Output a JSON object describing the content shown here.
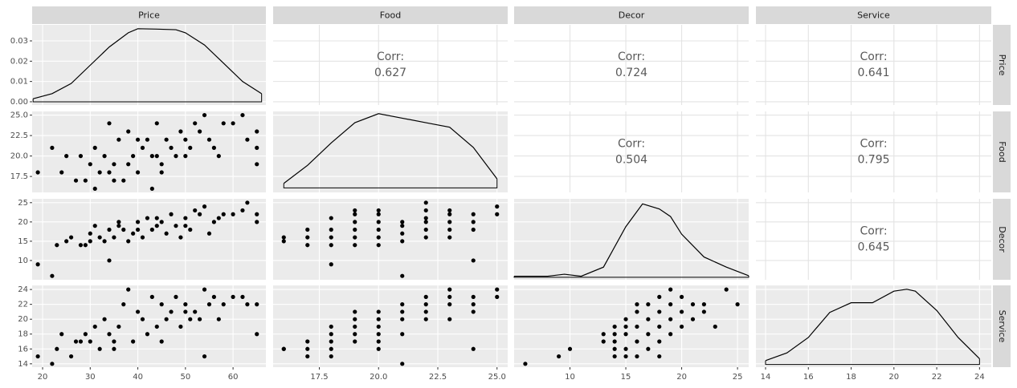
{
  "chart_data": {
    "type": "pairs",
    "variables": [
      "Price",
      "Food",
      "Decor",
      "Service"
    ],
    "axes": [
      {
        "lim": [
          17.8,
          66.9
        ],
        "ticks": [
          20,
          30,
          40,
          50,
          60
        ]
      },
      {
        "lim": [
          15.55,
          25.45
        ],
        "ticks": [
          17.5,
          {
            "value": 20,
            "label": "20.0"
          },
          22.5,
          {
            "value": 25,
            "label": "25.0"
          }
        ]
      },
      {
        "lim": [
          5,
          26
        ],
        "ticks": [
          10,
          15,
          20,
          25
        ]
      },
      {
        "lim": [
          13.55,
          24.55
        ],
        "ticks": [
          14,
          16,
          18,
          20,
          22,
          24
        ]
      }
    ],
    "density_yticks": [
      {
        "value": 0,
        "label": "0.00"
      },
      {
        "value": 0.01,
        "label": "0.01"
      },
      {
        "value": 0.02,
        "label": "0.02"
      },
      {
        "value": 0.03,
        "label": "0.03"
      }
    ],
    "densities": [
      {
        "x": [
          18,
          22,
          26,
          30,
          34,
          38,
          40,
          44,
          48,
          50,
          54,
          58,
          62,
          66
        ],
        "y": [
          0.0015,
          0.004,
          0.009,
          0.018,
          0.027,
          0.034,
          0.036,
          0.0358,
          0.0355,
          0.034,
          0.028,
          0.019,
          0.01,
          0.004
        ],
        "ylim": [
          -0.0016,
          0.0379
        ]
      },
      {
        "x": [
          16,
          17,
          18,
          19,
          20,
          21,
          22,
          23,
          24,
          25
        ],
        "y": [
          0.01,
          0.05,
          0.1,
          0.145,
          0.165,
          0.155,
          0.145,
          0.135,
          0.09,
          0.02
        ],
        "ylim": [
          -0.01,
          0.17
        ]
      },
      {
        "x": [
          5,
          8,
          9.5,
          11,
          13,
          15,
          16.5,
          18,
          19,
          20,
          22,
          24,
          26
        ],
        "y": [
          0.002,
          0.002,
          0.006,
          0.002,
          0.02,
          0.1,
          0.145,
          0.135,
          0.12,
          0.085,
          0.04,
          0.02,
          0.003
        ],
        "ylim": [
          -0.005,
          0.155
        ]
      },
      {
        "x": [
          14,
          15,
          16,
          17,
          18,
          19,
          20,
          20.6,
          21,
          22,
          23,
          24
        ],
        "y": [
          0.01,
          0.03,
          0.07,
          0.135,
          0.16,
          0.16,
          0.19,
          0.195,
          0.19,
          0.14,
          0.07,
          0.015
        ],
        "ylim": [
          -0.007,
          0.205
        ]
      }
    ],
    "corr_label": "Corr:",
    "correlations": [
      0.627,
      0.724,
      0.641,
      0.504,
      0.795,
      0.645
    ],
    "scatter": [
      {
        "x": [
          19,
          22,
          24,
          25,
          27,
          28,
          29,
          30,
          31,
          32,
          33,
          34,
          34,
          35,
          36,
          37,
          38,
          38,
          39,
          40,
          41,
          42,
          43,
          44,
          44,
          45,
          46,
          47,
          48,
          49,
          50,
          51,
          52,
          53,
          54,
          55,
          56,
          57,
          58,
          60,
          62,
          63,
          65,
          65,
          65,
          31,
          35,
          40,
          45,
          50,
          43
        ],
        "y": [
          18,
          21,
          18,
          20,
          17,
          20,
          17,
          19,
          16,
          18,
          20,
          24,
          18,
          19,
          22,
          17,
          23,
          19,
          20,
          18,
          21,
          22,
          16,
          20,
          24,
          19,
          22,
          21,
          20,
          23,
          22,
          21,
          24,
          23,
          25,
          22,
          21,
          20,
          24,
          24,
          25,
          22,
          23,
          21,
          19,
          21,
          17,
          22,
          18,
          20,
          20
        ]
      },
      {
        "x": [
          19,
          22,
          23,
          25,
          26,
          28,
          29,
          30,
          31,
          32,
          33,
          34,
          34,
          35,
          36,
          37,
          38,
          39,
          40,
          41,
          42,
          43,
          44,
          45,
          46,
          47,
          48,
          49,
          50,
          51,
          52,
          53,
          54,
          55,
          56,
          57,
          58,
          60,
          62,
          63,
          65,
          65,
          30,
          36,
          44,
          50,
          40
        ],
        "y": [
          9,
          6,
          14,
          15,
          16,
          14,
          14,
          17,
          19,
          16,
          15,
          10,
          18,
          16,
          20,
          18,
          15,
          17,
          20,
          16,
          21,
          18,
          19,
          20,
          17,
          22,
          19,
          16,
          21,
          18,
          23,
          22,
          24,
          17,
          20,
          21,
          22,
          22,
          23,
          25,
          22,
          20,
          15,
          19,
          21,
          19,
          18
        ]
      },
      {
        "x": [
          16,
          16,
          17,
          17,
          17,
          18,
          18,
          18,
          18,
          18,
          19,
          19,
          19,
          19,
          19,
          19,
          20,
          20,
          20,
          20,
          20,
          20,
          21,
          21,
          21,
          21,
          21,
          22,
          22,
          22,
          22,
          22,
          22,
          23,
          23,
          23,
          23,
          23,
          24,
          24,
          24,
          24,
          25,
          25
        ],
        "y": [
          15,
          16,
          14,
          16,
          18,
          9,
          14,
          16,
          18,
          21,
          14,
          16,
          18,
          20,
          22,
          23,
          14,
          16,
          18,
          20,
          22,
          23,
          6,
          15,
          17,
          19,
          20,
          16,
          18,
          20,
          21,
          23,
          25,
          16,
          18,
          20,
          22,
          23,
          10,
          18,
          20,
          22,
          22,
          24
        ]
      },
      {
        "x": [
          19,
          22,
          23,
          24,
          26,
          27,
          28,
          29,
          30,
          31,
          32,
          33,
          34,
          35,
          36,
          37,
          38,
          39,
          40,
          41,
          42,
          43,
          44,
          45,
          46,
          47,
          48,
          49,
          50,
          51,
          52,
          53,
          54,
          54,
          55,
          56,
          57,
          58,
          60,
          62,
          63,
          65,
          65,
          35,
          45,
          50
        ],
        "y": [
          15,
          14,
          16,
          18,
          15,
          17,
          17,
          18,
          17,
          19,
          16,
          20,
          18,
          17,
          19,
          22,
          24,
          17,
          21,
          20,
          18,
          23,
          19,
          22,
          20,
          21,
          23,
          19,
          22,
          20,
          21,
          20,
          24,
          15,
          22,
          23,
          20,
          22,
          23,
          23,
          22,
          22,
          18,
          16,
          17,
          21
        ]
      },
      {
        "x": [
          16,
          16,
          17,
          17,
          17,
          18,
          18,
          18,
          18,
          18,
          19,
          19,
          19,
          19,
          19,
          20,
          20,
          20,
          20,
          20,
          20,
          21,
          21,
          21,
          21,
          21,
          22,
          22,
          22,
          22,
          23,
          23,
          23,
          23,
          24,
          24,
          24,
          24,
          25,
          25
        ],
        "y": [
          16,
          16,
          15,
          16,
          17,
          15,
          16,
          17,
          18,
          19,
          17,
          18,
          19,
          20,
          21,
          16,
          17,
          18,
          19,
          20,
          21,
          14,
          18,
          20,
          21,
          22,
          20,
          21,
          22,
          23,
          20,
          22,
          23,
          24,
          16,
          21,
          22,
          23,
          23,
          24
        ]
      },
      {
        "x": [
          6,
          9,
          10,
          13,
          13,
          14,
          14,
          14,
          14,
          14,
          15,
          15,
          15,
          15,
          15,
          16,
          16,
          16,
          16,
          16,
          17,
          17,
          17,
          17,
          18,
          18,
          18,
          18,
          18,
          19,
          19,
          19,
          19,
          20,
          20,
          20,
          21,
          21,
          22,
          22,
          23,
          24,
          25
        ],
        "y": [
          14,
          15,
          16,
          17,
          18,
          15,
          16,
          17,
          18,
          19,
          15,
          16,
          18,
          19,
          20,
          15,
          17,
          19,
          21,
          22,
          16,
          18,
          20,
          22,
          17,
          19,
          21,
          23,
          15,
          18,
          20,
          22,
          24,
          19,
          21,
          23,
          20,
          22,
          21,
          22,
          19,
          24,
          22
        ]
      }
    ]
  }
}
